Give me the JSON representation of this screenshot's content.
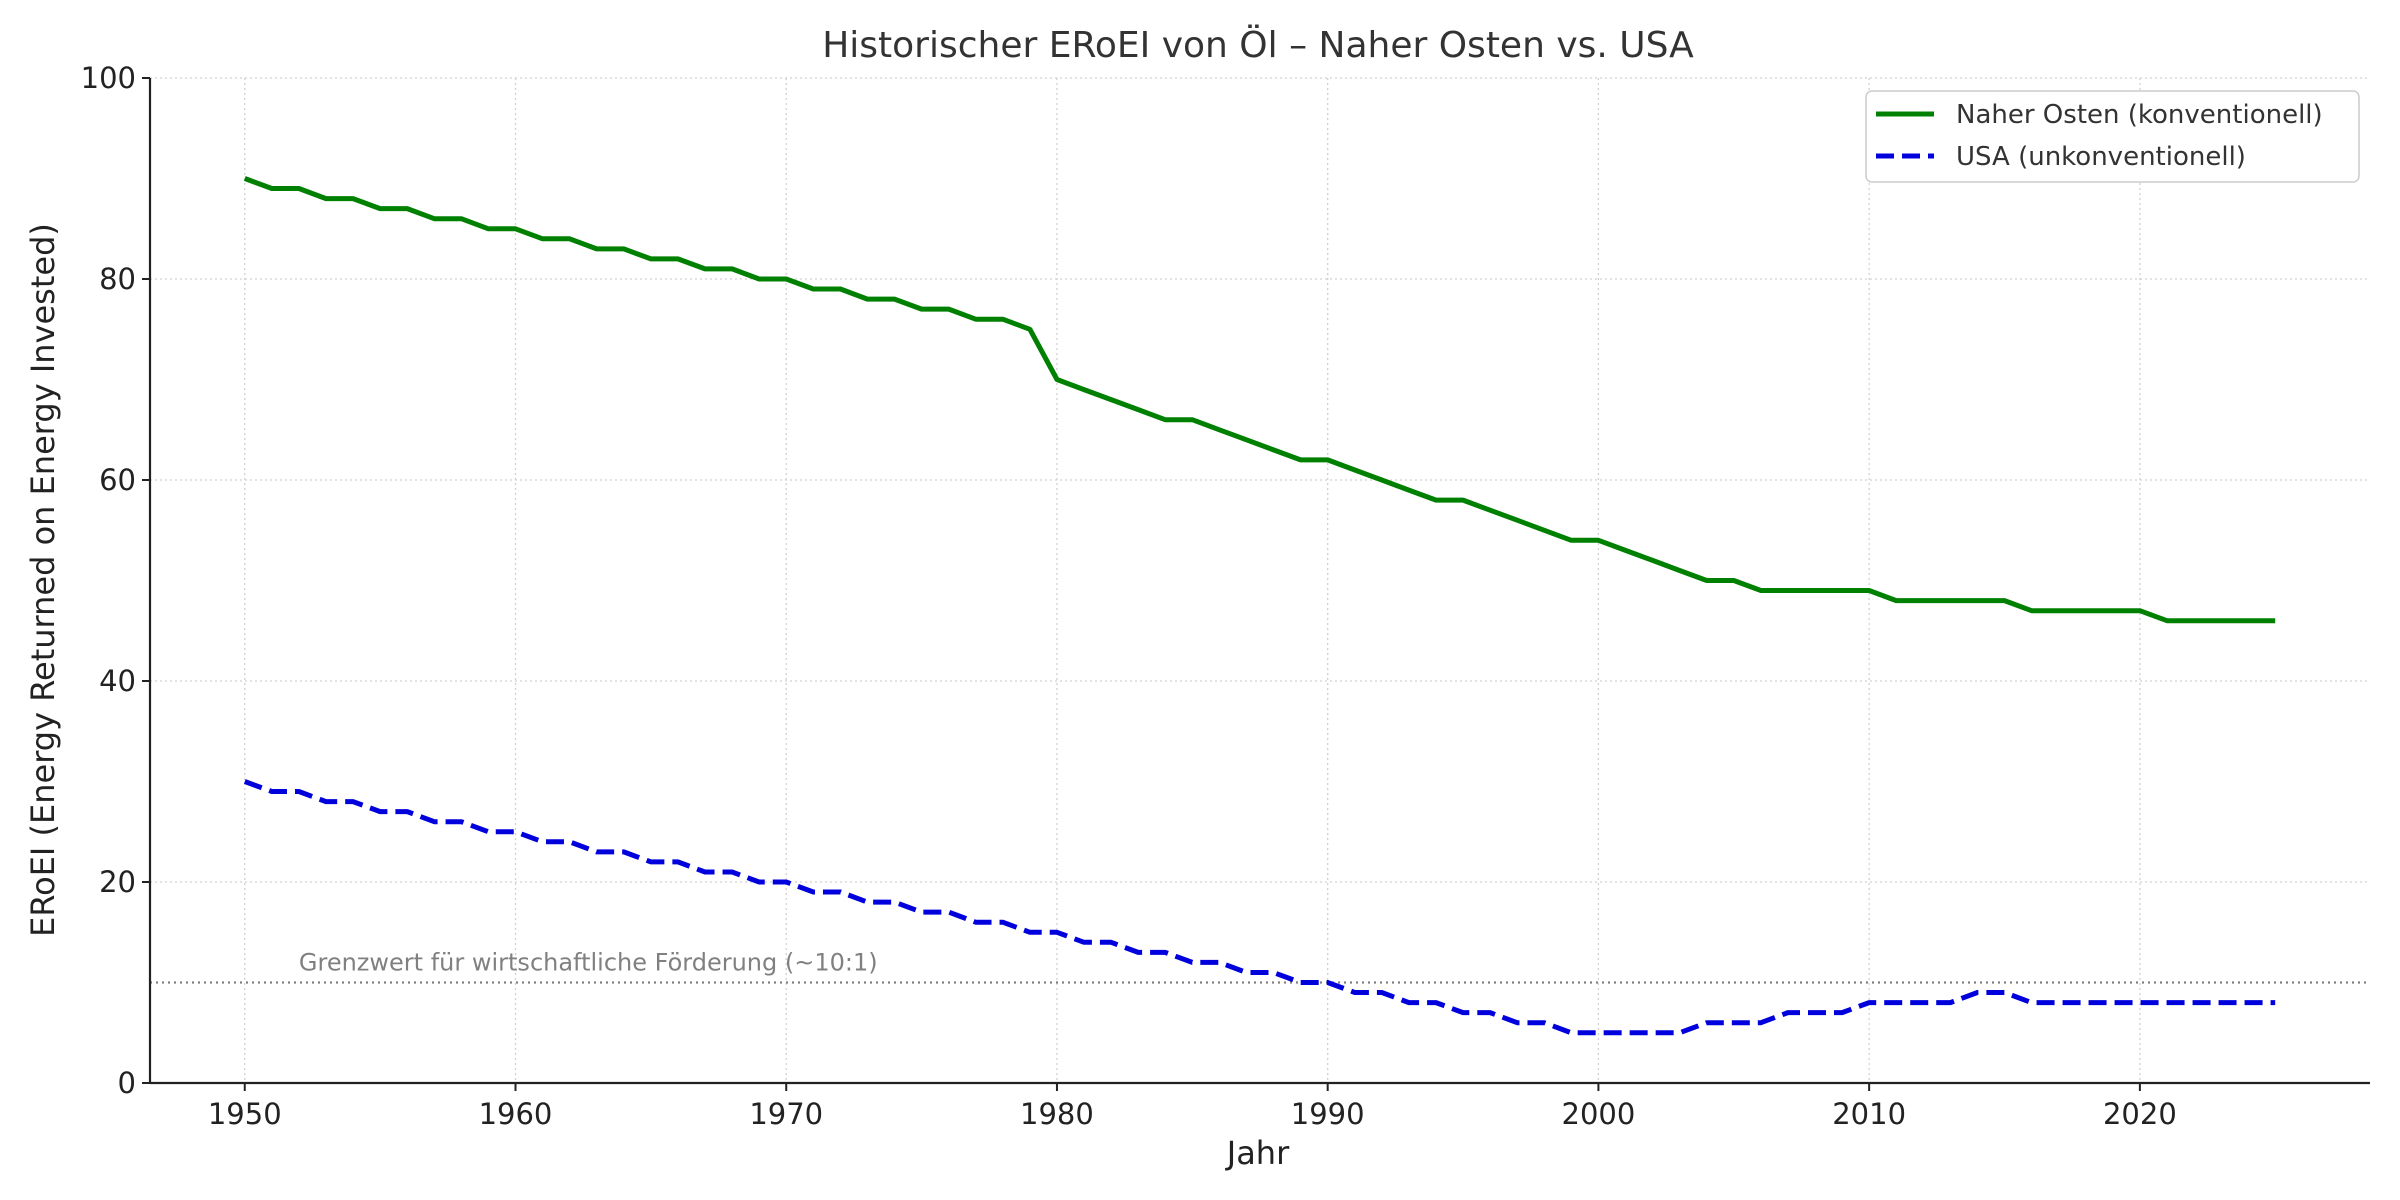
{
  "chart_data": {
    "type": "line",
    "title": "Historischer ERoEI von Öl – Naher Osten vs. USA",
    "xlabel": "Jahr",
    "ylabel": "ERoEI (Energy Returned on Energy Invested)",
    "xlim": [
      1946.5,
      2028.5
    ],
    "ylim": [
      0,
      100
    ],
    "xticks": [
      1950,
      1960,
      1970,
      1980,
      1990,
      2000,
      2010,
      2020
    ],
    "yticks": [
      0,
      20,
      40,
      60,
      80,
      100
    ],
    "grid": true,
    "legend_position": "top-right",
    "x": [
      1950,
      1951,
      1952,
      1953,
      1954,
      1955,
      1956,
      1957,
      1958,
      1959,
      1960,
      1961,
      1962,
      1963,
      1964,
      1965,
      1966,
      1967,
      1968,
      1969,
      1970,
      1971,
      1972,
      1973,
      1974,
      1975,
      1976,
      1977,
      1978,
      1979,
      1980,
      1981,
      1982,
      1983,
      1984,
      1985,
      1986,
      1987,
      1988,
      1989,
      1990,
      1991,
      1992,
      1993,
      1994,
      1995,
      1996,
      1997,
      1998,
      1999,
      2000,
      2001,
      2002,
      2003,
      2004,
      2005,
      2006,
      2007,
      2008,
      2009,
      2010,
      2011,
      2012,
      2013,
      2014,
      2015,
      2016,
      2017,
      2018,
      2019,
      2020,
      2021,
      2022,
      2023,
      2024,
      2025
    ],
    "series": [
      {
        "name": "Naher Osten (konventionell)",
        "color": "#008000",
        "style": "solid",
        "values": [
          90,
          89,
          89,
          88,
          88,
          87,
          87,
          86,
          86,
          85,
          85,
          84,
          84,
          83,
          83,
          82,
          82,
          81,
          81,
          80,
          80,
          79,
          79,
          78,
          78,
          77,
          77,
          76,
          76,
          75,
          70,
          69,
          68,
          67,
          66,
          66,
          65,
          64,
          63,
          62,
          62,
          61,
          60,
          59,
          58,
          58,
          57,
          56,
          55,
          54,
          54,
          53,
          52,
          51,
          50,
          50,
          49,
          49,
          49,
          49,
          49,
          48,
          48,
          48,
          48,
          48,
          47,
          47,
          47,
          47,
          47,
          46,
          46,
          46,
          46,
          46
        ]
      },
      {
        "name": "USA (unkonventionell)",
        "color": "#0000dd",
        "style": "dashed",
        "values": [
          30,
          29,
          29,
          28,
          28,
          27,
          27,
          26,
          26,
          25,
          25,
          24,
          24,
          23,
          23,
          22,
          22,
          21,
          21,
          20,
          20,
          19,
          19,
          18,
          18,
          17,
          17,
          16,
          16,
          15,
          15,
          14,
          14,
          13,
          13,
          12,
          12,
          11,
          11,
          10,
          10,
          9,
          9,
          8,
          8,
          7,
          7,
          6,
          6,
          5,
          5,
          5,
          5,
          5,
          6,
          6,
          6,
          7,
          7,
          7,
          8,
          8,
          8,
          8,
          9,
          9,
          8,
          8,
          8,
          8,
          8,
          8,
          8,
          8,
          8,
          8
        ]
      }
    ],
    "reference_line": {
      "y": 10,
      "label": "Grenzwert für wirtschaftliche Förderung (~10:1)",
      "color": "#808080"
    }
  }
}
